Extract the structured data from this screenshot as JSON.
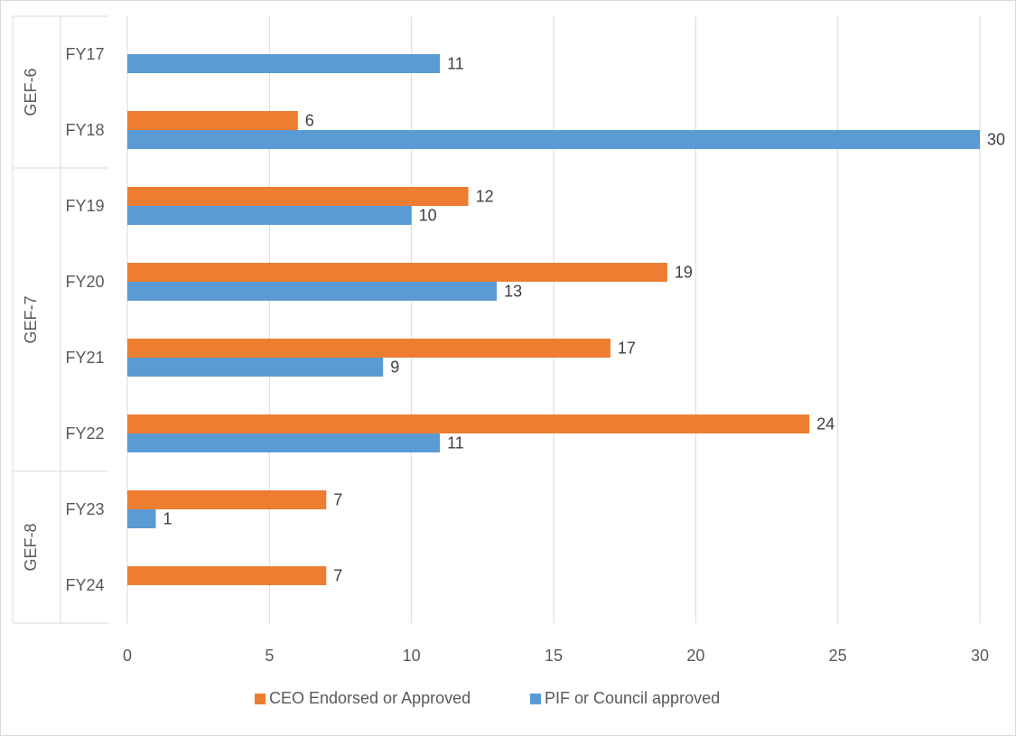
{
  "chart_data": {
    "type": "bar",
    "orientation": "horizontal",
    "title": "",
    "xlabel": "",
    "ylabel": "",
    "xlim": [
      0,
      30
    ],
    "x_ticks": [
      0,
      5,
      10,
      15,
      20,
      25,
      30
    ],
    "grid": "vertical",
    "legend_position": "bottom",
    "groups": [
      {
        "label": "GEF-6",
        "categories": [
          "FY17",
          "FY18"
        ]
      },
      {
        "label": "GEF-7",
        "categories": [
          "FY19",
          "FY20",
          "FY21",
          "FY22"
        ]
      },
      {
        "label": "GEF-8",
        "categories": [
          "FY23",
          "FY24"
        ]
      }
    ],
    "categories": [
      "FY17",
      "FY18",
      "FY19",
      "FY20",
      "FY21",
      "FY22",
      "FY23",
      "FY24"
    ],
    "series": [
      {
        "name": "CEO Endorsed or Approved",
        "color": "#ED7D31",
        "values": [
          null,
          6,
          12,
          19,
          17,
          24,
          7,
          7
        ]
      },
      {
        "name": "PIF or Council approved",
        "color": "#5B9BD5",
        "values": [
          11,
          30,
          10,
          13,
          9,
          11,
          1,
          null
        ]
      }
    ]
  }
}
